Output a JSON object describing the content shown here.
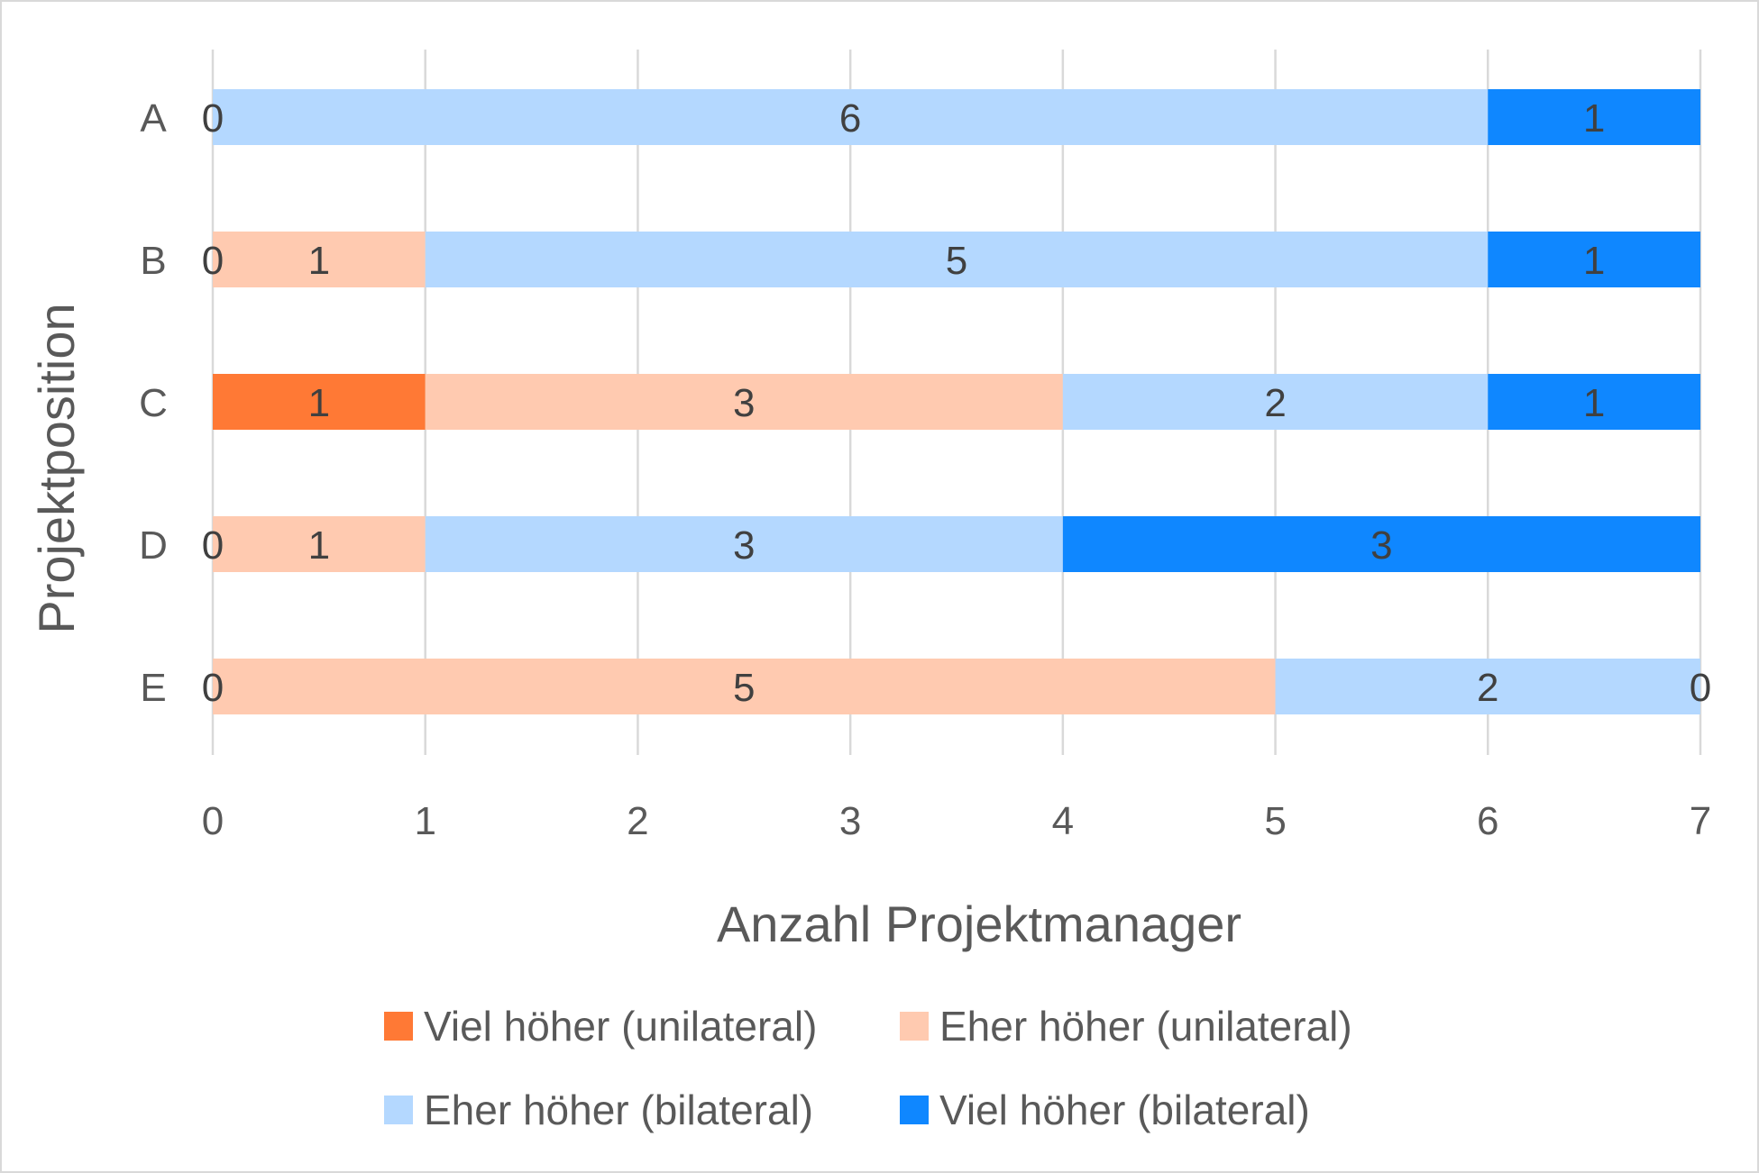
{
  "chart_data": {
    "type": "bar",
    "orientation": "horizontal",
    "stacked": true,
    "categories": [
      "A",
      "B",
      "C",
      "D",
      "E"
    ],
    "series": [
      {
        "name": "Viel höher (unilateral)",
        "color": "#ff7935",
        "values": [
          0,
          0,
          1,
          0,
          0
        ],
        "labels": [
          "0",
          "0",
          "1",
          "0",
          "0"
        ]
      },
      {
        "name": "Eher höher (unilateral)",
        "color": "#ffcab0",
        "values": [
          0,
          1,
          3,
          1,
          5
        ],
        "labels": [
          "",
          "1",
          "3",
          "1",
          "5"
        ]
      },
      {
        "name": "Eher höher (bilateral)",
        "color": "#b4d8ff",
        "values": [
          6,
          5,
          2,
          3,
          2
        ],
        "labels": [
          "6",
          "5",
          "2",
          "3",
          "2"
        ]
      },
      {
        "name": "Viel höher (bilateral)",
        "color": "#0f87ff",
        "values": [
          1,
          1,
          1,
          3,
          0
        ],
        "labels": [
          "1",
          "1",
          "1",
          "3",
          "0"
        ]
      }
    ],
    "xlabel": "Anzahl Projektmanager",
    "ylabel": "Projektposition",
    "xlim": [
      0,
      7
    ],
    "xticks": [
      "0",
      "1",
      "2",
      "3",
      "4",
      "5",
      "6",
      "7"
    ],
    "grid": "vertical",
    "legend": "bottom"
  }
}
